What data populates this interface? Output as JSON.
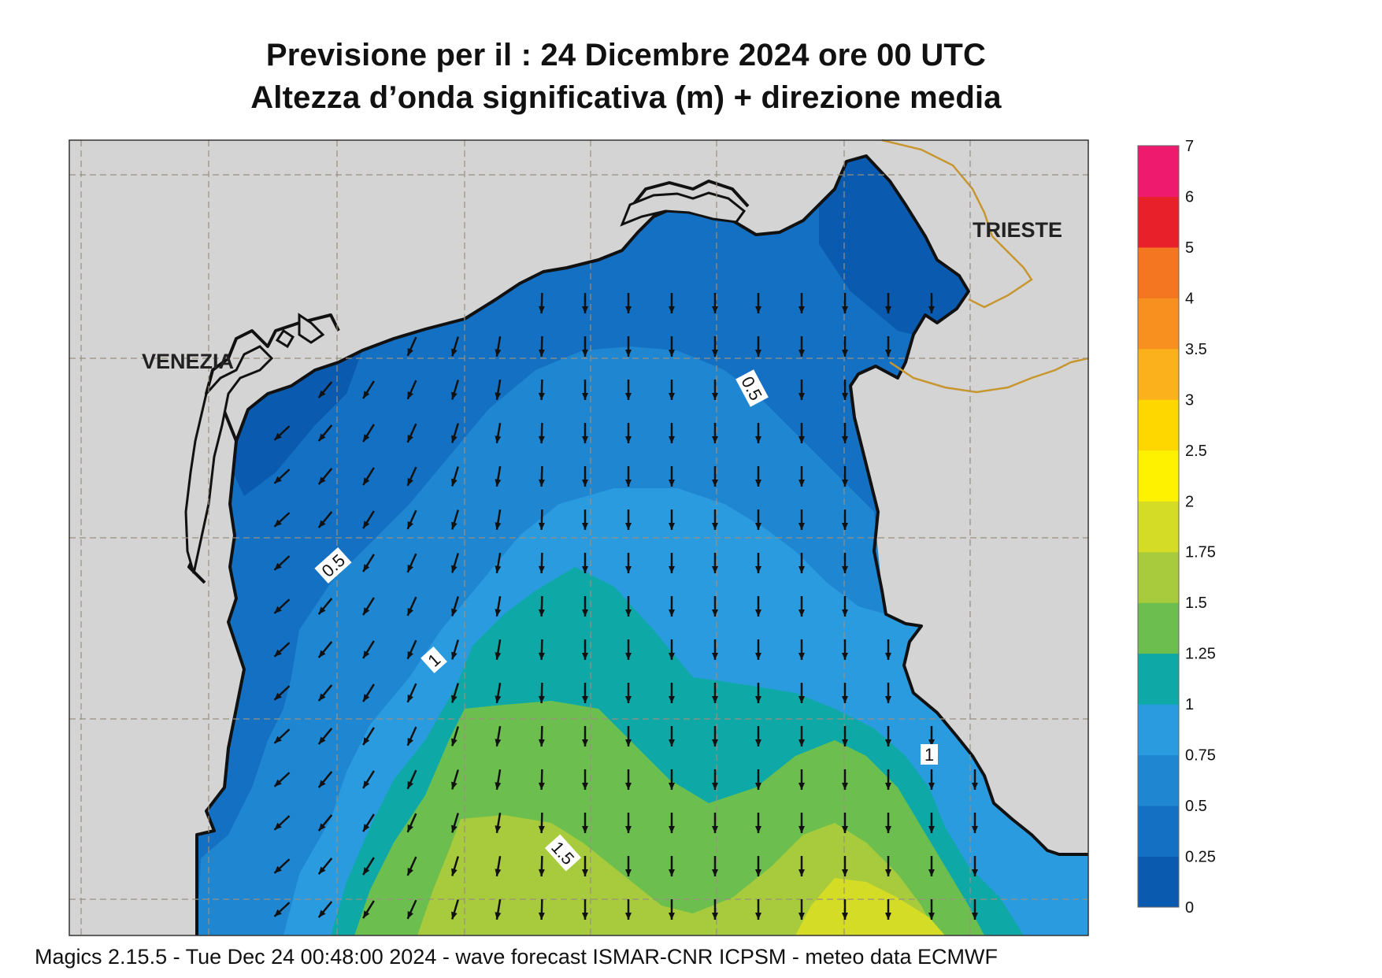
{
  "title": {
    "line1": "Previsione per il  :  24 Dicembre  2024   ore 00 UTC",
    "line2": "Altezza d’onda significativa (m) + direzione media"
  },
  "cities": {
    "venezia": "VENEZIA",
    "trieste": "TRIESTE"
  },
  "contour_labels": [
    "0.5",
    "0.5",
    "1",
    "1",
    "1.5"
  ],
  "colorbar": {
    "levels": [
      "0",
      "0.25",
      "0.5",
      "0.75",
      "1",
      "1.25",
      "1.5",
      "1.75",
      "2",
      "2.5",
      "3",
      "3.5",
      "4",
      "5",
      "6",
      "7"
    ],
    "colors": [
      "#0a5bb0",
      "#1470c2",
      "#1f86d2",
      "#2b9be0",
      "#0ea9a6",
      "#6cbf4e",
      "#a7cb3c",
      "#d4dc26",
      "#fff200",
      "#ffd700",
      "#fbb11c",
      "#f7901e",
      "#f47621",
      "#e8202a",
      "#ee1a6e"
    ]
  },
  "map_colors": {
    "land": "#d4d4d4",
    "coast": "#111111",
    "border": "#c8962e",
    "grid": "#9a8f80"
  },
  "footer": "Magics 2.15.5 - Tue Dec 24 00:48:00 2024 - wave forecast  ISMAR-CNR  ICPSM - meteo data   ECMWF"
}
